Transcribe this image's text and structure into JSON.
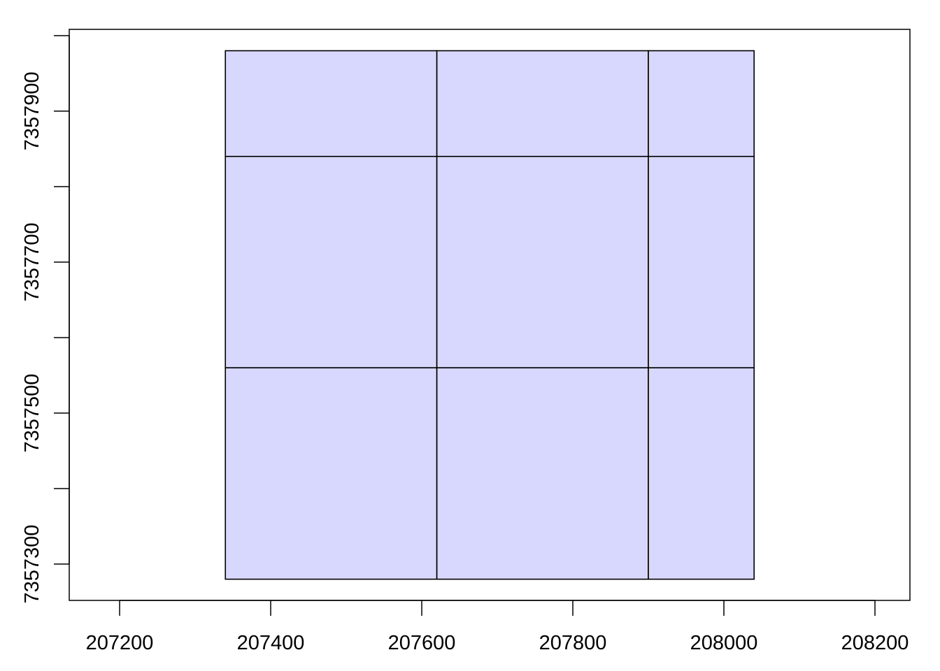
{
  "chart_data": {
    "type": "tiles",
    "title": "",
    "xlabel": "",
    "ylabel": "",
    "xlim": [
      207133.3,
      208246.3
    ],
    "ylim": [
      7357251.9,
      7358008.3
    ],
    "grid": false,
    "x_ticks": [
      207200,
      207400,
      207600,
      207800,
      208000,
      208200
    ],
    "x_tick_labels": [
      "207200",
      "207400",
      "207600",
      "207800",
      "208000",
      "208200"
    ],
    "y_ticks": [
      7357300,
      7357400,
      7357500,
      7357600,
      7357700,
      7357800,
      7357900,
      7358000
    ],
    "y_tick_labels": [
      "7357300",
      "7357500",
      "7357700",
      "7357900"
    ],
    "y_labeled_ticks": [
      7357300,
      7357500,
      7357700,
      7357900
    ],
    "fill_color": "#d8d8ff",
    "border_color": "#000000",
    "tiles": [
      {
        "xmin": 207340,
        "xmax": 207620,
        "ymin": 7357840,
        "ymax": 7357980
      },
      {
        "xmin": 207620,
        "xmax": 207900,
        "ymin": 7357840,
        "ymax": 7357980
      },
      {
        "xmin": 207900,
        "xmax": 208040,
        "ymin": 7357840,
        "ymax": 7357980
      },
      {
        "xmin": 207340,
        "xmax": 207620,
        "ymin": 7357560,
        "ymax": 7357840
      },
      {
        "xmin": 207620,
        "xmax": 207900,
        "ymin": 7357560,
        "ymax": 7357840
      },
      {
        "xmin": 207900,
        "xmax": 208040,
        "ymin": 7357560,
        "ymax": 7357840
      },
      {
        "xmin": 207340,
        "xmax": 207620,
        "ymin": 7357280,
        "ymax": 7357560
      },
      {
        "xmin": 207620,
        "xmax": 207900,
        "ymin": 7357280,
        "ymax": 7357560
      },
      {
        "xmin": 207900,
        "xmax": 208040,
        "ymin": 7357280,
        "ymax": 7357560
      }
    ]
  }
}
